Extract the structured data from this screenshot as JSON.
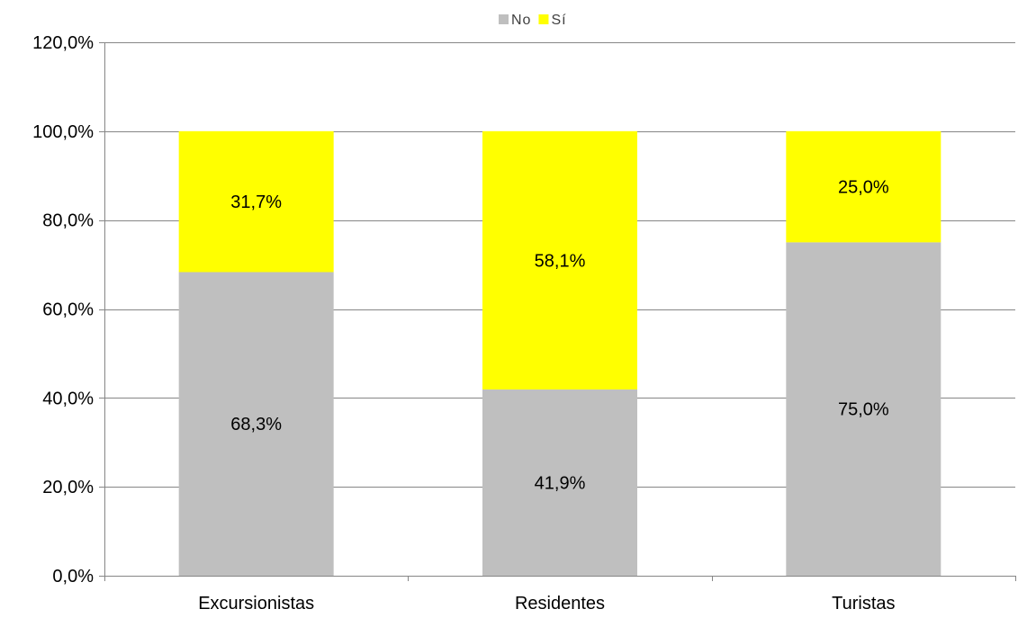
{
  "chart_data": {
    "type": "bar",
    "stacked": true,
    "categories": [
      "Excursionistas",
      "Residentes",
      "Turistas"
    ],
    "series": [
      {
        "name": "No",
        "color": "#bfbfbf",
        "values": [
          68.3,
          41.9,
          75.0
        ],
        "labels": [
          "68,3%",
          "41,9%",
          "75,0%"
        ]
      },
      {
        "name": "Sí",
        "color": "#ffff00",
        "values": [
          31.7,
          58.1,
          25.0
        ],
        "labels": [
          "31,7%",
          "58,1%",
          "25,0%"
        ]
      }
    ],
    "ylim": [
      0,
      120
    ],
    "yticks": [
      0,
      20,
      40,
      60,
      80,
      100,
      120
    ],
    "ytick_labels": [
      "0,0%",
      "20,0%",
      "40,0%",
      "60,0%",
      "80,0%",
      "100,0%",
      "120,0%"
    ],
    "grid": true,
    "legend_position": "top-center",
    "title": "",
    "xlabel": "",
    "ylabel": ""
  }
}
